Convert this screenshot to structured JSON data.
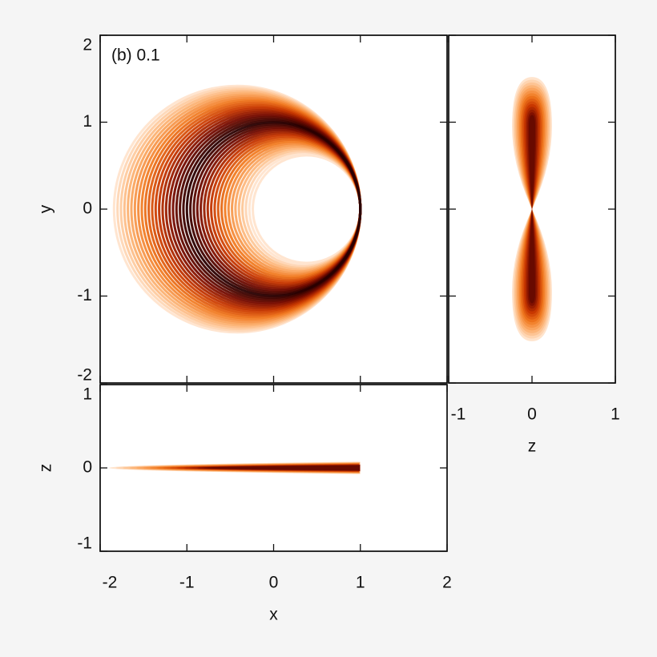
{
  "chart_data": [
    {
      "type": "density",
      "annotation": "(b) 0.1",
      "y_label": "y",
      "xlim": [
        -2,
        2
      ],
      "ylim": [
        -2,
        2
      ],
      "xticks": [
        -2,
        -1,
        0,
        1,
        2
      ],
      "yticks": [
        -2,
        -1,
        0,
        1,
        2
      ],
      "xtick_labels": false,
      "ytick_labels": true
    },
    {
      "type": "density",
      "x_label": "z",
      "xlim": [
        -1,
        1
      ],
      "ylim": [
        -2,
        2
      ],
      "xticks": [
        -1,
        0,
        1
      ],
      "yticks": [
        -2,
        -1,
        0,
        1,
        2
      ],
      "xtick_labels": true,
      "ytick_labels": false
    },
    {
      "type": "density",
      "x_label": "x",
      "y_label": "z",
      "xlim": [
        -2,
        2
      ],
      "ylim": [
        -1,
        1
      ],
      "xticks": [
        -2,
        -1,
        0,
        1,
        2
      ],
      "yticks": [
        -1,
        0,
        1
      ],
      "xtick_labels": true,
      "ytick_labels": true
    }
  ]
}
